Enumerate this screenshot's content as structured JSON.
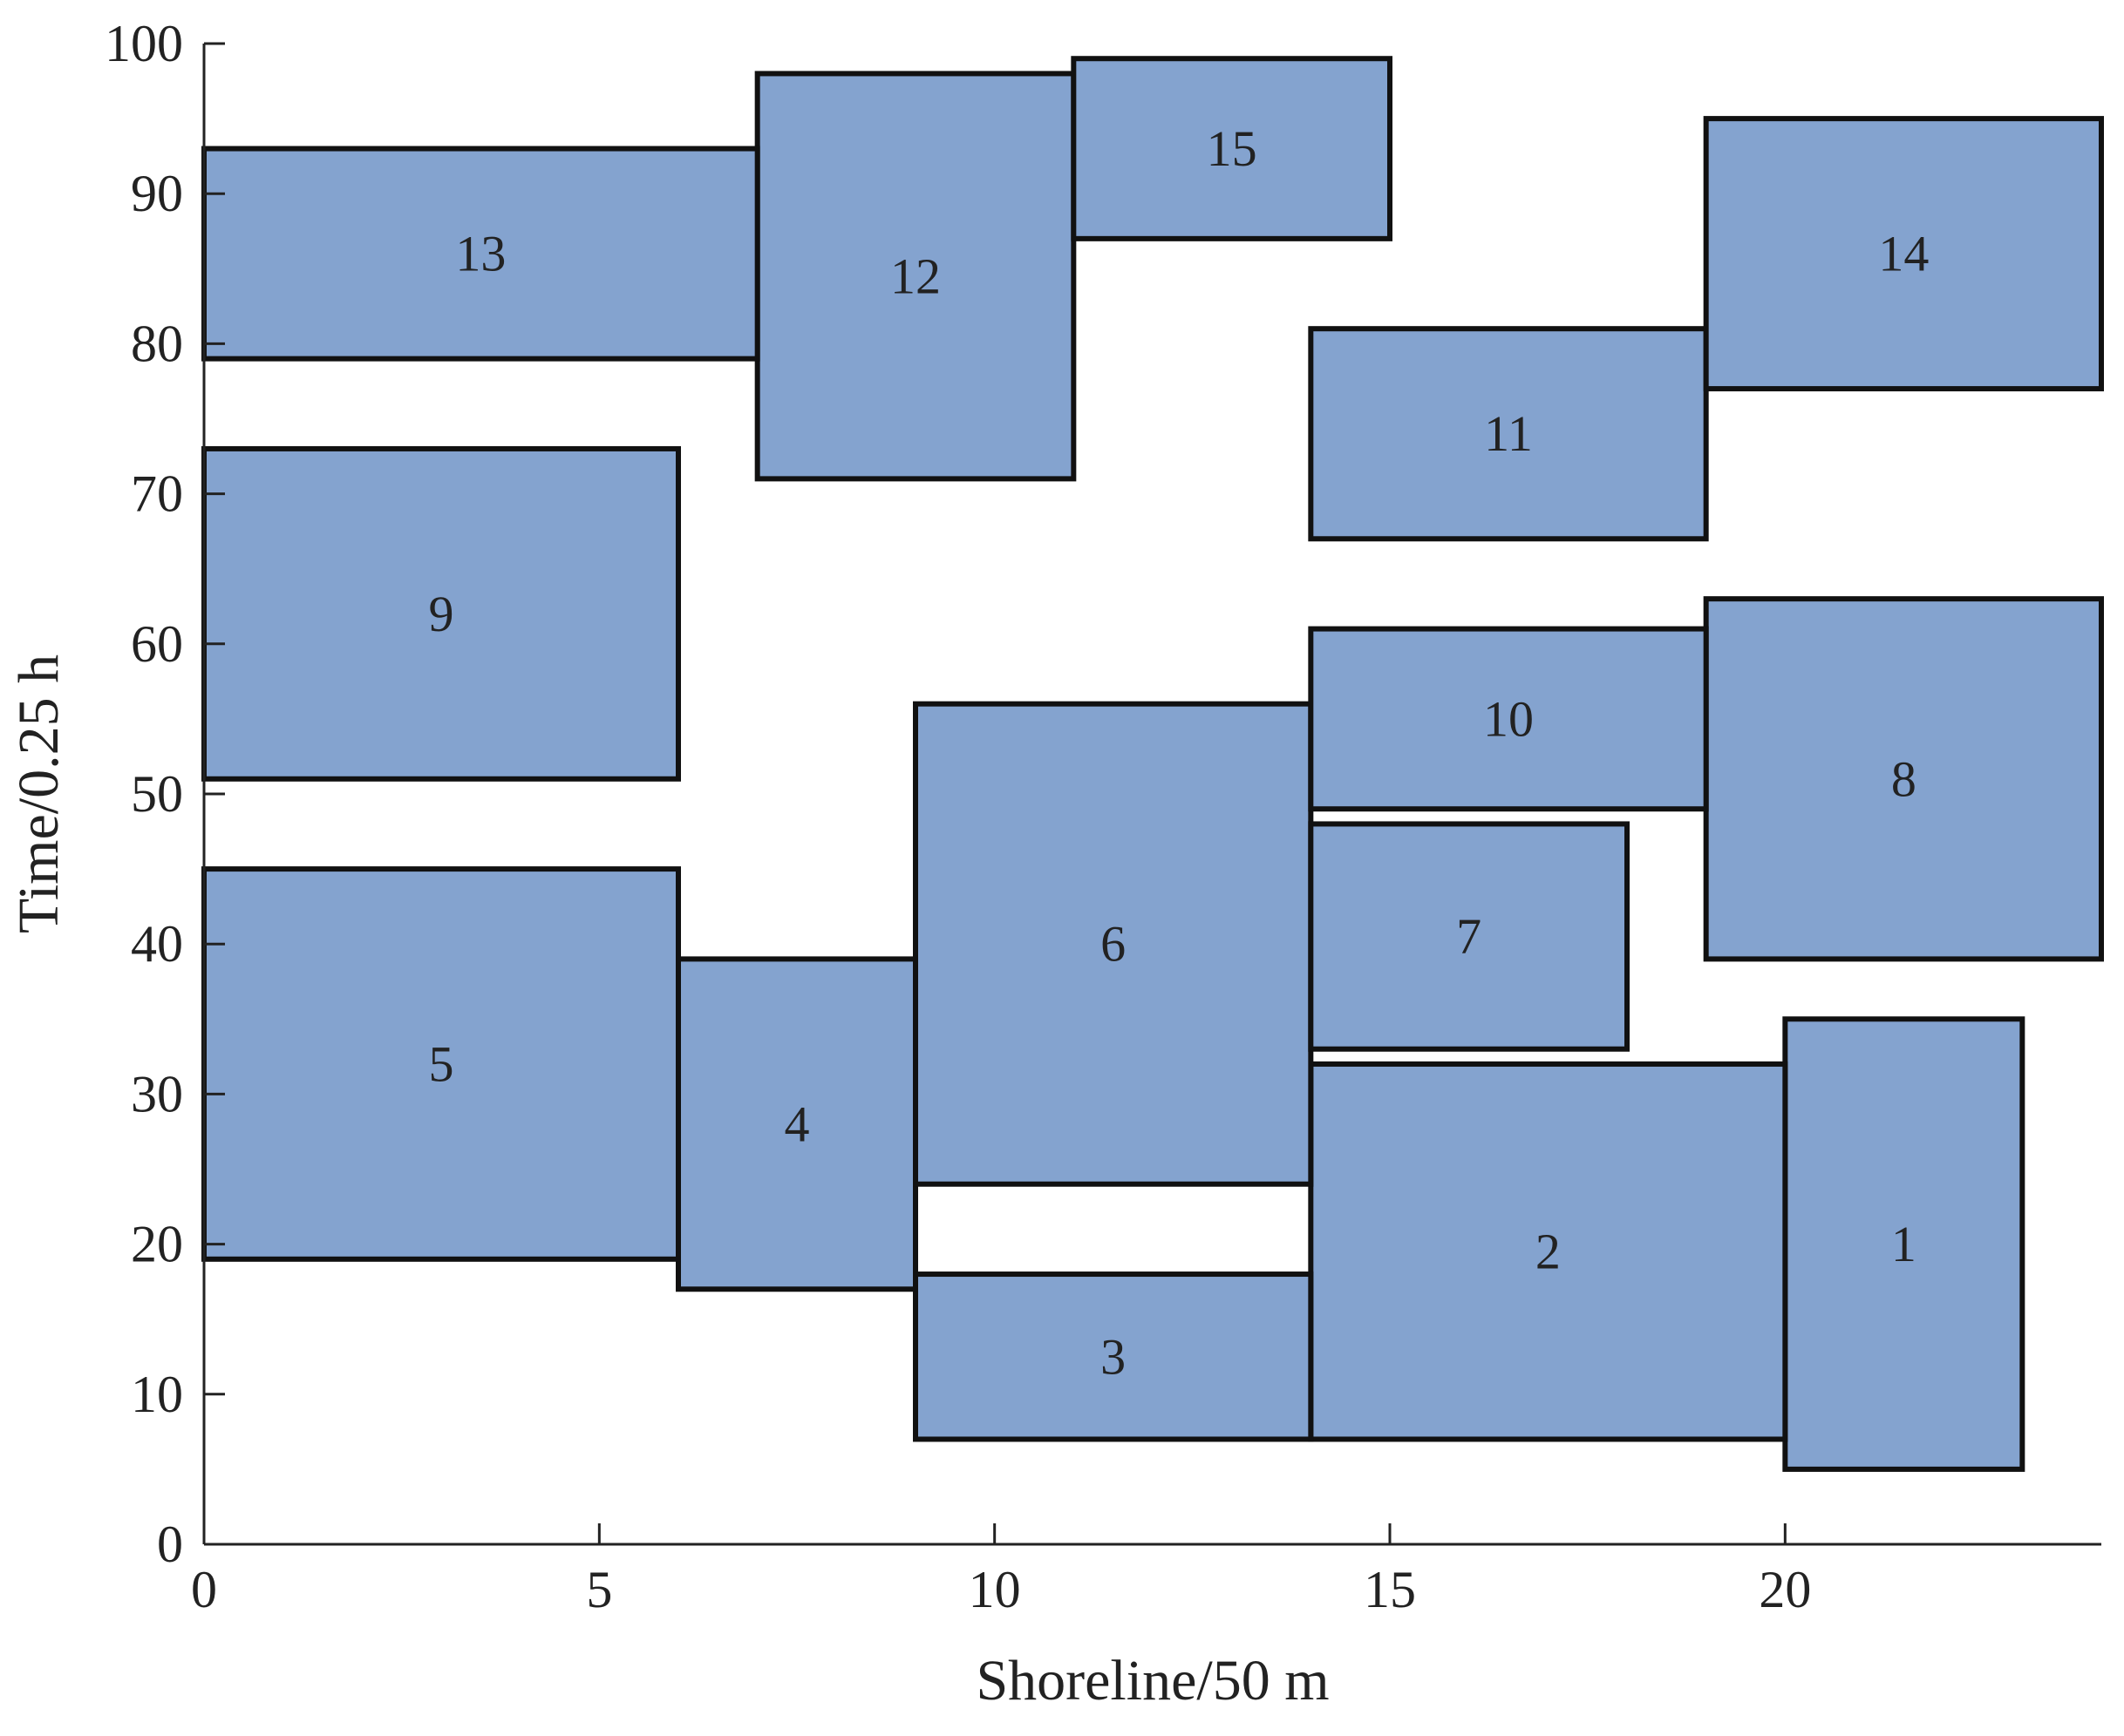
{
  "chart_data": {
    "type": "gantt",
    "xlabel": "Shoreline/50 m",
    "ylabel": "Time/0.25 h",
    "xlim": [
      0,
      24
    ],
    "ylim": [
      0,
      100
    ],
    "xticks": [
      0,
      5,
      10,
      15,
      20
    ],
    "yticks": [
      0,
      10,
      20,
      30,
      40,
      50,
      60,
      70,
      80,
      90,
      100
    ],
    "grid": false,
    "legend": "none",
    "box_color": "#84a3cf",
    "border_color": "#111111",
    "rectangles": [
      {
        "label": "1",
        "x0": 20,
        "x1": 23,
        "y0": 5,
        "y1": 35
      },
      {
        "label": "2",
        "x0": 14,
        "x1": 20,
        "y0": 7,
        "y1": 32
      },
      {
        "label": "3",
        "x0": 9,
        "x1": 14,
        "y0": 7,
        "y1": 18
      },
      {
        "label": "4",
        "x0": 6,
        "x1": 9,
        "y0": 17,
        "y1": 39
      },
      {
        "label": "5",
        "x0": 0,
        "x1": 6,
        "y0": 19,
        "y1": 45
      },
      {
        "label": "6",
        "x0": 9,
        "x1": 14,
        "y0": 24,
        "y1": 56
      },
      {
        "label": "7",
        "x0": 14,
        "x1": 18,
        "y0": 33,
        "y1": 48
      },
      {
        "label": "8",
        "x0": 19,
        "x1": 24,
        "y0": 39,
        "y1": 63
      },
      {
        "label": "9",
        "x0": 0,
        "x1": 6,
        "y0": 51,
        "y1": 73
      },
      {
        "label": "10",
        "x0": 14,
        "x1": 19,
        "y0": 49,
        "y1": 61
      },
      {
        "label": "11",
        "x0": 14,
        "x1": 19,
        "y0": 67,
        "y1": 81
      },
      {
        "label": "12",
        "x0": 7,
        "x1": 11,
        "y0": 71,
        "y1": 98
      },
      {
        "label": "13",
        "x0": 0,
        "x1": 7,
        "y0": 79,
        "y1": 93
      },
      {
        "label": "14",
        "x0": 19,
        "x1": 24,
        "y0": 77,
        "y1": 95
      },
      {
        "label": "15",
        "x0": 11,
        "x1": 15,
        "y0": 87,
        "y1": 99
      }
    ]
  }
}
